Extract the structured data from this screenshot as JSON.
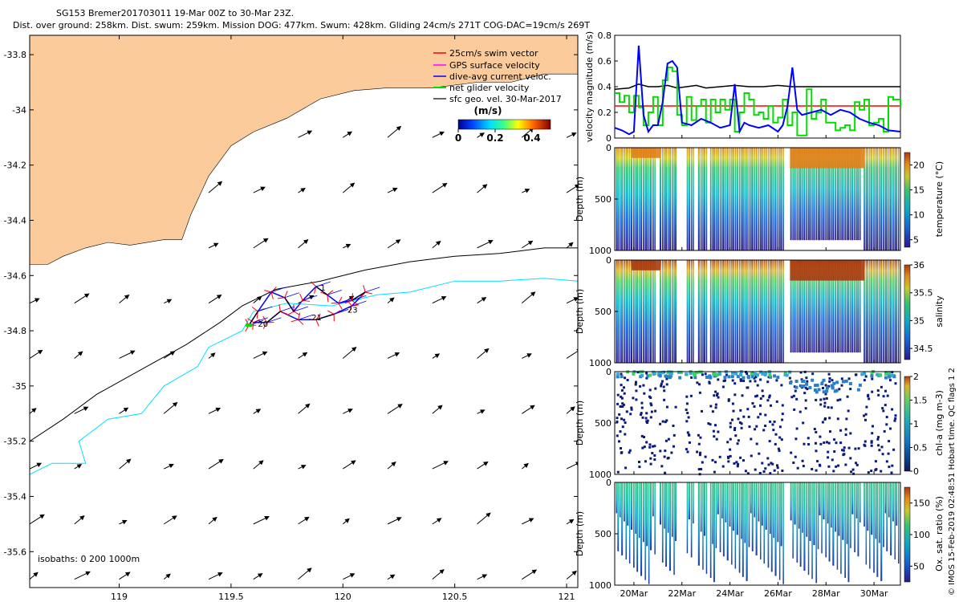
{
  "header": {
    "line1": "SG153 Bremer201703011 19-Mar 00Z to 30-Mar 23Z.",
    "line2": "Dist. over ground: 258km. Dist. swum: 259km. Mission DOG: 477km. Swum: 428km. Gliding 24cm/s 271T COG-DAC=19cm/s 269T"
  },
  "footer": {
    "credit": "© IMOS 15-Feb-2019 02:48:51 Hobart time. QC flags 1 2"
  },
  "colors": {
    "land": "#fbcb9c",
    "swim_vector": "#ff0000",
    "gps_velocity": "#ff00ff",
    "dive_avg_current": "#0000ff",
    "net_glider": "#00dd00",
    "sfc_geo": "#000000",
    "isobath_200": "#000000",
    "isobath_1000": "#00e0ff"
  },
  "chart_data": [
    {
      "type": "map",
      "title": "",
      "xlim": [
        118.6,
        121.05
      ],
      "ylim": [
        -35.73,
        -33.73
      ],
      "xticks": [
        119,
        119.5,
        120,
        120.5,
        121
      ],
      "xtick_labels": [
        "119",
        "119.5",
        "120",
        "120.5",
        "121"
      ],
      "yticks": [
        -33.8,
        -34,
        -34.2,
        -34.4,
        -34.6,
        -34.8,
        -35,
        -35.2,
        -35.4,
        -35.6
      ],
      "ytick_labels": [
        "-33.8",
        "-34",
        "-34.2",
        "-34.4",
        "-34.6",
        "-34.8",
        "-35",
        "-35.2",
        "-35.4",
        "-35.6"
      ],
      "legend": {
        "placement": "top-right",
        "entries": [
          "25cm/s swim vector",
          "GPS surface velocity",
          "dive-avg current veloc.",
          "net glider velocity",
          "sfc geo. vel. 30-Mar-2017"
        ]
      },
      "colorbar": {
        "label": "(m/s)",
        "ticks": [
          0,
          0.2,
          0.4
        ],
        "tick_labels": [
          "0",
          "0.2",
          "0.4"
        ],
        "range": [
          0,
          0.5
        ]
      },
      "isobaths_label": "isobaths: 0   200  1000m",
      "coastline": [
        [
          118.6,
          -33.73
        ],
        [
          121.05,
          -33.73
        ],
        [
          121.05,
          -33.87
        ],
        [
          120.9,
          -33.87
        ],
        [
          120.75,
          -33.9
        ],
        [
          120.6,
          -33.9
        ],
        [
          120.4,
          -33.92
        ],
        [
          120.2,
          -33.92
        ],
        [
          120.05,
          -33.93
        ],
        [
          119.9,
          -33.96
        ],
        [
          119.75,
          -34.03
        ],
        [
          119.6,
          -34.08
        ],
        [
          119.5,
          -34.13
        ],
        [
          119.4,
          -34.24
        ],
        [
          119.32,
          -34.38
        ],
        [
          119.28,
          -34.47
        ],
        [
          119.2,
          -34.47
        ],
        [
          119.05,
          -34.49
        ],
        [
          118.95,
          -34.48
        ],
        [
          118.85,
          -34.5
        ],
        [
          118.75,
          -34.53
        ],
        [
          118.68,
          -34.56
        ],
        [
          118.6,
          -34.56
        ]
      ],
      "isobath_200m": [
        [
          118.6,
          -35.2
        ],
        [
          118.75,
          -35.12
        ],
        [
          118.9,
          -35.03
        ],
        [
          119.1,
          -34.94
        ],
        [
          119.3,
          -34.85
        ],
        [
          119.45,
          -34.77
        ],
        [
          119.55,
          -34.71
        ],
        [
          119.7,
          -34.65
        ],
        [
          119.9,
          -34.62
        ],
        [
          120.1,
          -34.58
        ],
        [
          120.3,
          -34.55
        ],
        [
          120.5,
          -34.53
        ],
        [
          120.7,
          -34.52
        ],
        [
          120.9,
          -34.5
        ],
        [
          121.05,
          -34.5
        ]
      ],
      "isobath_1000m": [
        [
          118.6,
          -35.32
        ],
        [
          118.7,
          -35.28
        ],
        [
          118.85,
          -35.28
        ],
        [
          118.82,
          -35.2
        ],
        [
          118.95,
          -35.12
        ],
        [
          119.1,
          -35.1
        ],
        [
          119.2,
          -35.0
        ],
        [
          119.35,
          -34.93
        ],
        [
          119.4,
          -34.86
        ],
        [
          119.55,
          -34.8
        ],
        [
          119.6,
          -34.73
        ],
        [
          119.75,
          -34.7
        ],
        [
          119.95,
          -34.71
        ],
        [
          120.15,
          -34.67
        ],
        [
          120.3,
          -34.66
        ],
        [
          120.5,
          -34.62
        ],
        [
          120.7,
          -34.62
        ],
        [
          120.9,
          -34.61
        ],
        [
          121.05,
          -34.62
        ]
      ],
      "glider_track": [
        [
          119.58,
          -34.78
        ],
        [
          119.62,
          -34.73
        ],
        [
          119.68,
          -34.66
        ],
        [
          119.74,
          -34.68
        ],
        [
          119.78,
          -34.73
        ],
        [
          119.82,
          -34.69
        ],
        [
          119.88,
          -34.64
        ],
        [
          119.93,
          -34.67
        ],
        [
          119.98,
          -34.7
        ],
        [
          120.04,
          -34.69
        ],
        [
          120.1,
          -34.66
        ],
        [
          120.04,
          -34.71
        ],
        [
          119.96,
          -34.74
        ],
        [
          119.88,
          -34.76
        ],
        [
          119.8,
          -34.76
        ],
        [
          119.72,
          -34.73
        ],
        [
          119.66,
          -34.77
        ],
        [
          119.6,
          -34.77
        ]
      ],
      "track_labels": [
        {
          "text": "23",
          "lon": 120.02,
          "lat": -34.735
        },
        {
          "text": "20",
          "lon": 119.62,
          "lat": -34.785
        },
        {
          "text": "21",
          "lon": 119.86,
          "lat": -34.762
        },
        {
          "text": "1",
          "lon": 119.9,
          "lat": -34.655
        }
      ],
      "sfc_geo_grid": {
        "lon": [
          118.6,
          118.8,
          119,
          119.2,
          119.4,
          119.6,
          119.8,
          120,
          120.2,
          120.4,
          120.6,
          120.8,
          121
        ],
        "lat": [
          -34.1,
          -34.3,
          -34.5,
          -34.7,
          -34.9,
          -35.1,
          -35.3,
          -35.5,
          -35.7
        ],
        "u": 0.2,
        "v": 0.12
      }
    },
    {
      "type": "line",
      "title": "",
      "xlabel": "",
      "ylabel": "velocity magnitude (m/s)",
      "ylim": [
        0,
        0.8
      ],
      "yticks": [
        0,
        0.2,
        0.4,
        0.6,
        0.8
      ],
      "ytick_labels": [
        "0",
        "0.2",
        "0.4",
        "0.6",
        "0.8"
      ],
      "xlim": [
        19.2,
        31.1
      ],
      "series": [
        {
          "color": "#000000",
          "x": [
            19.2,
            19.8,
            20.2,
            20.6,
            21.0,
            21.4,
            21.8,
            22.2,
            22.6,
            23.0,
            23.6,
            24.2,
            24.8,
            25.4,
            26.0,
            26.6,
            27.2,
            27.8,
            28.4,
            29.0,
            29.6,
            30.2,
            30.6,
            31.1
          ],
          "y": [
            0.38,
            0.39,
            0.42,
            0.4,
            0.4,
            0.41,
            0.39,
            0.4,
            0.41,
            0.39,
            0.4,
            0.41,
            0.4,
            0.4,
            0.41,
            0.4,
            0.4,
            0.4,
            0.4,
            0.4,
            0.4,
            0.4,
            0.4,
            0.4
          ]
        },
        {
          "color": "#ff0000",
          "x": [
            19.2,
            31.1
          ],
          "y": [
            0.25,
            0.25
          ]
        },
        {
          "color": "#00dd00",
          "x": [
            19.2,
            19.4,
            19.6,
            19.8,
            20.0,
            20.2,
            20.4,
            20.6,
            20.8,
            21.0,
            21.2,
            21.4,
            21.6,
            21.8,
            22.0,
            22.2,
            22.4,
            22.6,
            22.8,
            23.0,
            23.2,
            23.4,
            23.6,
            23.8,
            24.0,
            24.2,
            24.4,
            24.6,
            24.8,
            25.0,
            25.2,
            25.4,
            25.6,
            25.8,
            26.0,
            26.2,
            26.4,
            26.6,
            26.8,
            27.0,
            27.2,
            27.4,
            27.6,
            27.8,
            28.0,
            28.2,
            28.4,
            28.6,
            28.8,
            29.0,
            29.2,
            29.4,
            29.6,
            29.8,
            30.0,
            30.2,
            30.4,
            30.6,
            30.8,
            31.1
          ],
          "y": [
            0.35,
            0.28,
            0.33,
            0.2,
            0.33,
            0.24,
            0.1,
            0.2,
            0.32,
            0.1,
            0.45,
            0.55,
            0.52,
            0.18,
            0.1,
            0.32,
            0.14,
            0.25,
            0.3,
            0.12,
            0.3,
            0.2,
            0.3,
            0.22,
            0.3,
            0.05,
            0.2,
            0.35,
            0.3,
            0.18,
            0.2,
            0.15,
            0.25,
            0.12,
            0.16,
            0.3,
            0.1,
            0.2,
            0.02,
            0.02,
            0.38,
            0.15,
            0.2,
            0.3,
            0.12,
            0.12,
            0.06,
            0.08,
            0.1,
            0.06,
            0.28,
            0.22,
            0.3,
            0.1,
            0.12,
            0.15,
            0.05,
            0.32,
            0.3,
            0.24
          ]
        },
        {
          "color": "#0000ff",
          "x": [
            19.2,
            19.5,
            19.8,
            20.0,
            20.2,
            20.4,
            20.6,
            20.8,
            21.0,
            21.2,
            21.4,
            21.6,
            21.8,
            22.0,
            22.4,
            22.8,
            23.2,
            23.6,
            24.0,
            24.2,
            24.4,
            24.6,
            24.8,
            25.2,
            25.6,
            26.0,
            26.2,
            26.4,
            26.6,
            26.8,
            27.0,
            27.4,
            27.8,
            28.2,
            28.6,
            29.0,
            29.4,
            29.8,
            30.2,
            30.6,
            31.1
          ],
          "y": [
            0.08,
            0.06,
            0.03,
            0.05,
            0.72,
            0.18,
            0.05,
            0.1,
            0.1,
            0.28,
            0.58,
            0.6,
            0.55,
            0.12,
            0.1,
            0.15,
            0.12,
            0.08,
            0.1,
            0.42,
            0.05,
            0.12,
            0.1,
            0.08,
            0.1,
            0.05,
            0.1,
            0.25,
            0.55,
            0.22,
            0.18,
            0.2,
            0.22,
            0.18,
            0.22,
            0.2,
            0.15,
            0.12,
            0.1,
            0.06,
            0.05
          ]
        }
      ]
    },
    {
      "type": "heatmap",
      "title": "",
      "ylabel": "Depth (m)",
      "colorbar_label": "temperature (°C)",
      "color_range": [
        3.5,
        22.5
      ],
      "colorbar_ticks": [
        5,
        10,
        15,
        20
      ],
      "colorbar_tick_labels": [
        "5",
        "10",
        "15",
        "20"
      ],
      "yticks": [
        0,
        500,
        1000
      ],
      "ytick_labels": [
        "0",
        "500",
        "1000"
      ],
      "ylim": [
        0,
        1000
      ]
    },
    {
      "type": "heatmap",
      "title": "",
      "ylabel": "Depth (m)",
      "colorbar_label": "salinity",
      "color_range": [
        34.3,
        36
      ],
      "colorbar_ticks": [
        34.5,
        35,
        35.5,
        36
      ],
      "colorbar_tick_labels": [
        "34.5",
        "35",
        "35.5",
        "36"
      ],
      "yticks": [
        0,
        500,
        1000
      ],
      "ytick_labels": [
        "0",
        "500",
        "1000"
      ],
      "ylim": [
        0,
        1000
      ]
    },
    {
      "type": "scatter",
      "title": "",
      "ylabel": "Depth (m)",
      "colorbar_label": "chl-a (mg m-3)",
      "color_range": [
        0,
        2
      ],
      "colorbar_ticks": [
        0,
        0.5,
        1,
        1.5,
        2
      ],
      "colorbar_tick_labels": [
        "0",
        "0.5",
        "1",
        "1.5",
        "2"
      ],
      "yticks": [
        0,
        500,
        1000
      ],
      "ytick_labels": [
        "0",
        "500",
        "1000"
      ],
      "ylim": [
        0,
        1000
      ]
    },
    {
      "type": "heatmap",
      "title": "",
      "ylabel": "Depth (m)",
      "colorbar_label": "Ox. sat. ratio (%)",
      "color_range": [
        25,
        175
      ],
      "colorbar_ticks": [
        50,
        100,
        150
      ],
      "colorbar_tick_labels": [
        "50",
        "100",
        "150"
      ],
      "yticks": [
        0,
        500,
        1000
      ],
      "ytick_labels": [
        "0",
        "500",
        "1000"
      ],
      "ylim": [
        0,
        1000
      ],
      "xticks": [
        20,
        22,
        24,
        26,
        28,
        30
      ],
      "xtick_labels": [
        "20Mar",
        "22Mar",
        "24Mar",
        "26Mar",
        "28Mar",
        "30Mar"
      ]
    }
  ]
}
